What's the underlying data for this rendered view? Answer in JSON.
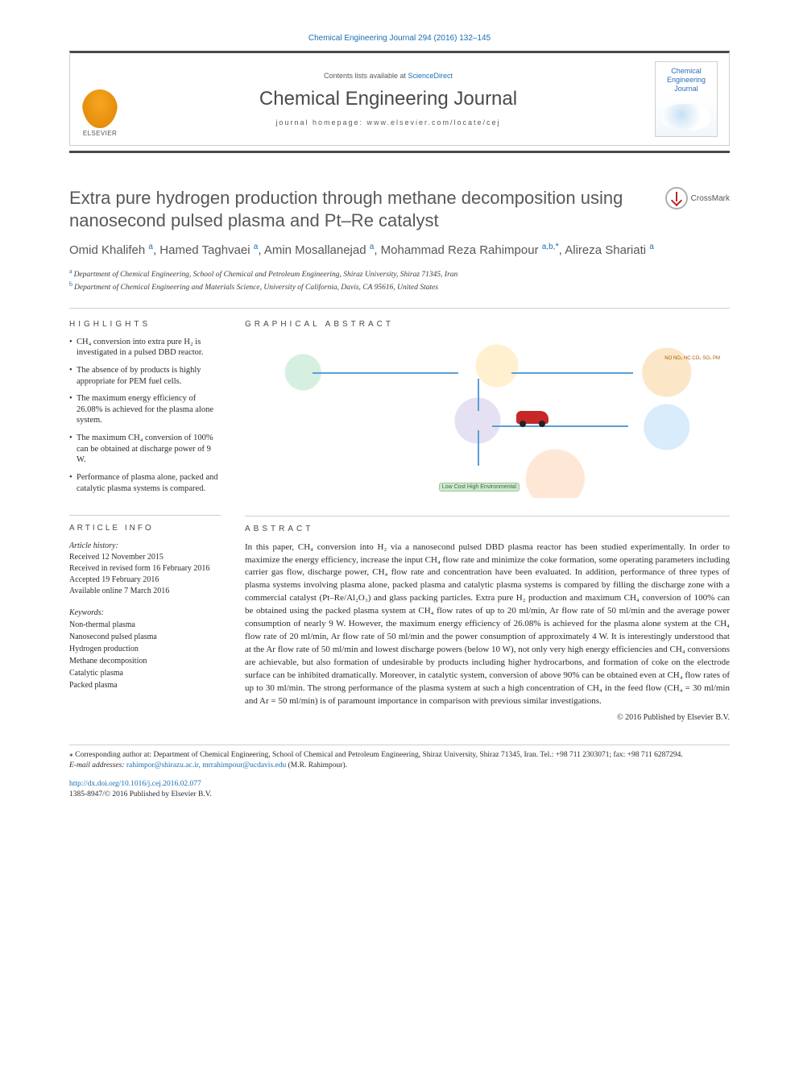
{
  "topRef": "Chemical Engineering Journal 294 (2016) 132–145",
  "header": {
    "contents_pre": "Contents lists available at ",
    "contents_link": "ScienceDirect",
    "journal": "Chemical Engineering Journal",
    "homepage_pre": "journal homepage: ",
    "homepage_url": "www.elsevier.com/locate/cej",
    "elsevier_word": "ELSEVIER",
    "cover_title": "Chemical Engineering Journal"
  },
  "crossmark_label": "CrossMark",
  "title": "Extra pure hydrogen production through methane decomposition using nanosecond pulsed plasma and Pt–Re catalyst",
  "authors": [
    {
      "name": "Omid Khalifeh",
      "sup": "a"
    },
    {
      "name": "Hamed Taghvaei",
      "sup": "a"
    },
    {
      "name": "Amin Mosallanejad",
      "sup": "a"
    },
    {
      "name": "Mohammad Reza Rahimpour",
      "sup": "a,b,",
      "star": "*"
    },
    {
      "name": "Alireza Shariati",
      "sup": "a"
    }
  ],
  "affiliations": [
    {
      "sup": "a",
      "text": "Department of Chemical Engineering, School of Chemical and Petroleum Engineering, Shiraz University, Shiraz 71345, Iran"
    },
    {
      "sup": "b",
      "text": "Department of Chemical Engineering and Materials Science, University of California, Davis, CA 95616, United States"
    }
  ],
  "sections": {
    "highlights": "HIGHLIGHTS",
    "graphical": "GRAPHICAL ABSTRACT",
    "info": "ARTICLE INFO",
    "abstract": "ABSTRACT"
  },
  "highlights": [
    "CH₄ conversion into extra pure H₂ is investigated in a pulsed DBD reactor.",
    "The absence of by products is highly appropriate for PEM fuel cells.",
    "The maximum energy efficiency of 26.08% is achieved for the plasma alone system.",
    "The maximum CH₄ conversion of 100% can be obtained at discharge power of 9 W.",
    "Performance of plasma alone, packed and catalytic plasma systems is compared."
  ],
  "ga_tags": {
    "green": "Low Cost\nHigh Environmental\n",
    "orange": "NO\nNO₂\nHC   CO₂\nSO₂   PM"
  },
  "history": {
    "label": "Article history:",
    "received": "Received 12 November 2015",
    "revised": "Received in revised form 16 February 2016",
    "accepted": "Accepted 19 February 2016",
    "online": "Available online 7 March 2016"
  },
  "keywords": {
    "label": "Keywords:",
    "items": [
      "Non-thermal plasma",
      "Nanosecond pulsed plasma",
      "Hydrogen production",
      "Methane decomposition",
      "Catalytic plasma",
      "Packed plasma"
    ]
  },
  "abstract": "In this paper, CH₄ conversion into H₂ via a nanosecond pulsed DBD plasma reactor has been studied experimentally. In order to maximize the energy efficiency, increase the input CH₄ flow rate and minimize the coke formation, some operating parameters including carrier gas flow, discharge power, CH₄ flow rate and concentration have been evaluated. In addition, performance of three types of plasma systems involving plasma alone, packed plasma and catalytic plasma systems is compared by filling the discharge zone with a commercial catalyst (Pt–Re/Al₂O₃) and glass packing particles. Extra pure H₂ production and maximum CH₄ conversion of 100% can be obtained using the packed plasma system at CH₄ flow rates of up to 20 ml/min, Ar flow rate of 50 ml/min and the average power consumption of nearly 9 W. However, the maximum energy efficiency of 26.08% is achieved for the plasma alone system at the CH₄ flow rate of 20 ml/min, Ar flow rate of 50 ml/min and the power consumption of approximately 4 W. It is interestingly understood that at the Ar flow rate of 50 ml/min and lowest discharge powers (below 10 W), not only very high energy efficiencies and CH₄ conversions are achievable, but also formation of undesirable by products including higher hydrocarbons, and formation of coke on the electrode surface can be inhibited dramatically. Moreover, in catalytic system, conversion of above 90% can be obtained even at CH₄ flow rates of up to 30 ml/min. The strong performance of the plasma system at such a high concentration of CH₄ in the feed flow (CH₄ = 30 ml/min and Ar = 50 ml/min) is of paramount importance in comparison with previous similar investigations.",
  "copyright": "© 2016 Published by Elsevier B.V.",
  "footnote": {
    "corresponding": "⁎ Corresponding author at: Department of Chemical Engineering, School of Chemical and Petroleum Engineering, Shiraz University, Shiraz 71345, Iran. Tel.: +98 711 2303071; fax: +98 711 6287294.",
    "email_label": "E-mail addresses: ",
    "emails": "rahimpor@shirazu.ac.ir, mrrahimpour@ucdavis.edu",
    "email_person": " (M.R. Rahimpour)."
  },
  "doi": {
    "url": "http://dx.doi.org/10.1016/j.cej.2016.02.077",
    "issn_line": "1385-8947/© 2016 Published by Elsevier B.V."
  }
}
